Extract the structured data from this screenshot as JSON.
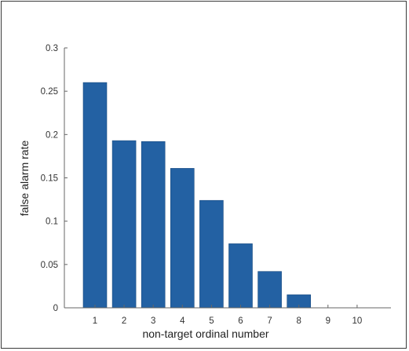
{
  "chart_data": {
    "type": "bar",
    "title": "",
    "xlabel": "non-target ordinal number",
    "ylabel": "false alarm rate",
    "categories": [
      "1",
      "2",
      "3",
      "4",
      "5",
      "6",
      "7",
      "8",
      "9",
      "10"
    ],
    "values": [
      0.26,
      0.193,
      0.192,
      0.161,
      0.124,
      0.074,
      0.042,
      0.015,
      0.0,
      0.0
    ],
    "ylim": [
      0,
      0.3
    ],
    "yticks": [
      0,
      0.05,
      0.1,
      0.15,
      0.2,
      0.25,
      0.3
    ],
    "ytick_labels": [
      "0",
      "0.05",
      "0.1",
      "0.15",
      "0.2",
      "0.25",
      "0.3"
    ],
    "bar_color": "#2361a3",
    "grid": false,
    "legend": "none"
  }
}
